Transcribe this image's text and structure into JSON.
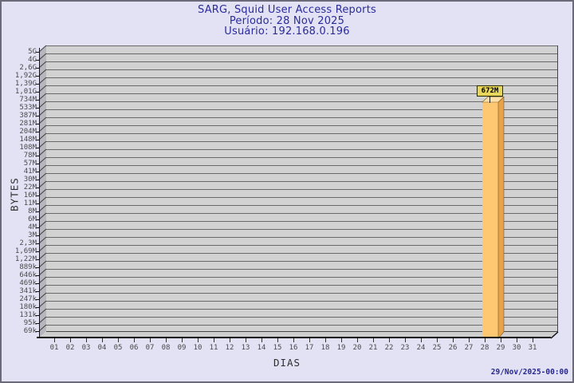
{
  "window": {
    "background": "#E2E2F4",
    "border_color": "#6A6A78"
  },
  "header": {
    "title": "SARG, Squid User Access Reports",
    "period": "Período: 28 Nov 2025",
    "user": "Usuário: 192.168.0.196",
    "text_color": "#2B2B9B"
  },
  "footer": {
    "timestamp": "29/Nov/2025-00:00"
  },
  "chart_data": {
    "type": "bar",
    "title": "SARG, Squid User Access Reports",
    "subtitle": [
      "Período: 28 Nov 2025",
      "Usuário: 192.168.0.196"
    ],
    "xlabel": "DIAS",
    "ylabel": "BYTES",
    "x_categories": [
      "01",
      "02",
      "03",
      "04",
      "05",
      "06",
      "07",
      "08",
      "09",
      "10",
      "11",
      "12",
      "13",
      "14",
      "15",
      "16",
      "17",
      "18",
      "19",
      "20",
      "21",
      "22",
      "23",
      "24",
      "25",
      "26",
      "27",
      "28",
      "29",
      "30",
      "31"
    ],
    "ytick_labels": [
      "5G",
      "4G",
      "2,6G",
      "1,92G",
      "1,39G",
      "1,01G",
      "734M",
      "533M",
      "387M",
      "281M",
      "204M",
      "148M",
      "108M",
      "78M",
      "57M",
      "41M",
      "30M",
      "22M",
      "16M",
      "11M",
      "8M",
      "6M",
      "4M",
      "3M",
      "2,3M",
      "1,69M",
      "1,22M",
      "889k",
      "646k",
      "469k",
      "341k",
      "247k",
      "180k",
      "131k",
      "95k",
      "69k"
    ],
    "ylim": [
      "69k",
      "5G"
    ],
    "grid": "horizontal",
    "legend": "none",
    "bars": [
      {
        "category": "28",
        "value_label": "672M"
      }
    ],
    "other_categories_value_label": "0",
    "colors": {
      "bar_front": "#FEC772",
      "bar_side": "#E8A24C",
      "bar_top": "#FFE1A8",
      "bar_label_bg": "#E7D65A",
      "plot_back_wall": "#D2D2D2",
      "plot_side_wall": "#B6B6BC",
      "plot_floor": "#CFCFCF",
      "gridline": "#696969",
      "tick_text": "#4A4A4A"
    }
  }
}
